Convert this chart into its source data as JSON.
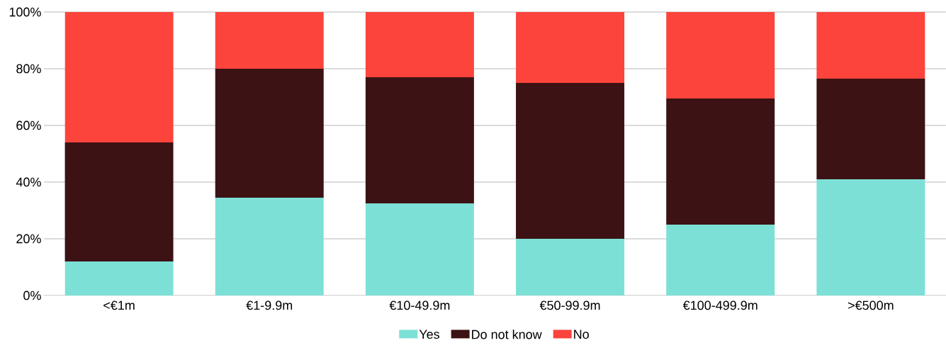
{
  "chart_data": {
    "type": "bar",
    "stacked": true,
    "categories": [
      "<€1m",
      "€1-9.9m",
      "€10-49.9m",
      "€50-99.9m",
      "€100-499.9m",
      ">€500m"
    ],
    "series": [
      {
        "name": "Yes",
        "color": "#7de0d6",
        "values": [
          12,
          34.5,
          32.5,
          20,
          25,
          41
        ]
      },
      {
        "name": "Do not know",
        "color": "#3d1214",
        "values": [
          42,
          45.5,
          44.5,
          55,
          44.5,
          35.5
        ]
      },
      {
        "name": "No",
        "color": "#fc443c",
        "values": [
          46,
          20,
          23,
          25,
          30.5,
          23.5
        ]
      }
    ],
    "ylim": [
      0,
      100
    ],
    "yticks": [
      {
        "value": 0,
        "label": "0%"
      },
      {
        "value": 20,
        "label": "20%"
      },
      {
        "value": 40,
        "label": "40%"
      },
      {
        "value": 60,
        "label": "60%"
      },
      {
        "value": 80,
        "label": "80%"
      },
      {
        "value": 100,
        "label": "100%"
      }
    ],
    "grid": "y",
    "legend": "bottom"
  }
}
